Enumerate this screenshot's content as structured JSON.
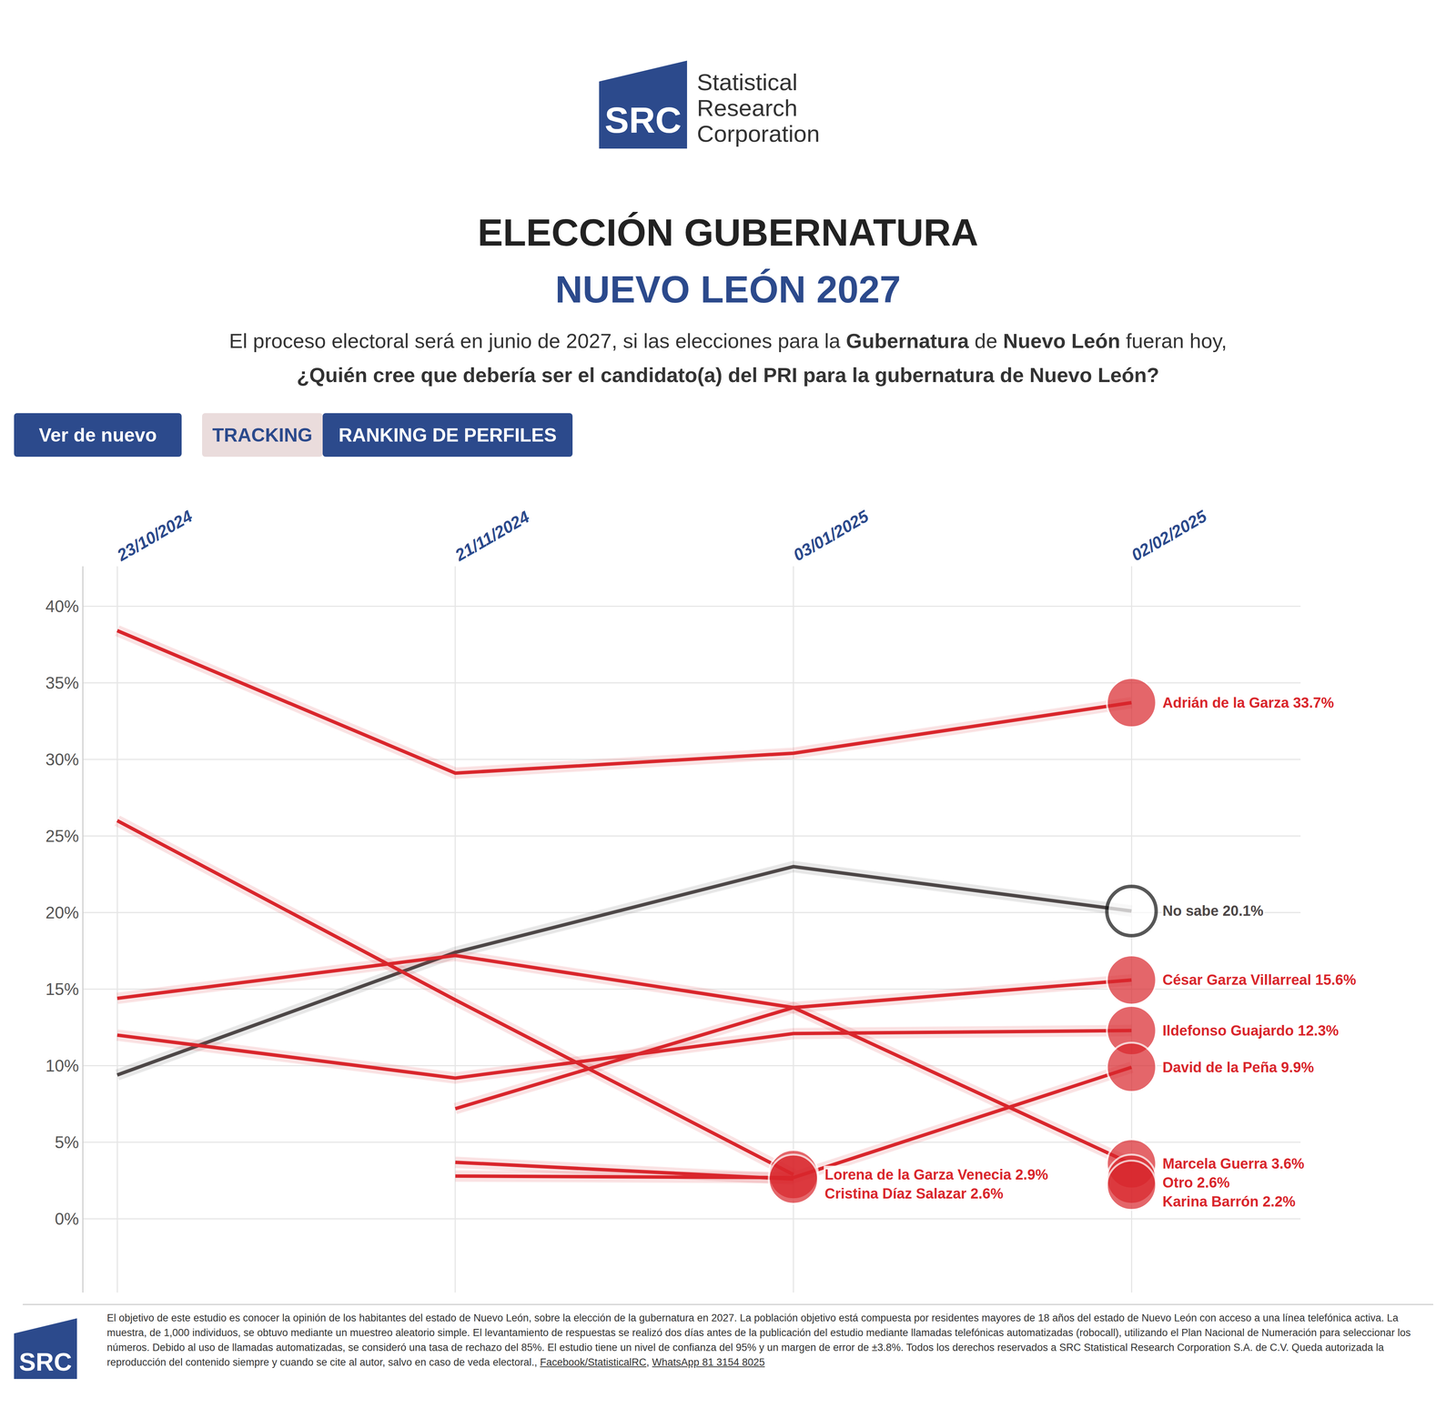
{
  "header": {
    "logo": {
      "mark": "SRC",
      "lines": [
        "Statistical",
        "Research",
        "Corporation"
      ]
    },
    "title": "ELECCIÓN GUBERNATURA",
    "subtitle": "NUEVO LEÓN 2027",
    "question": [
      [
        {
          "text": "El proceso electoral será en junio de 2027, si las elecciones para la ",
          "bold": false
        },
        {
          "text": "Gubernatura",
          "bold": true
        },
        {
          "text": " de ",
          "bold": false
        },
        {
          "text": "Nuevo León",
          "bold": true
        },
        {
          "text": " fueran hoy,",
          "bold": false
        }
      ],
      [
        {
          "text": "¿Quién cree que debería ser el candidato(a) del PRI para la gubernatura de Nuevo León?",
          "bold": true
        }
      ]
    ],
    "buttons": [
      "Ver de nuevo",
      "TRACKING",
      "RANKING DE PERFILES"
    ]
  },
  "chart_data": {
    "type": "line",
    "categories": [
      "23/10/2024",
      "21/11/2024",
      "03/01/2025",
      "02/02/2025"
    ],
    "ylim": [
      -4.8,
      42.6
    ],
    "yticks": [
      {
        "value": 0,
        "label": "0%"
      },
      {
        "value": 5,
        "label": "5%"
      },
      {
        "value": 10,
        "label": "10%"
      },
      {
        "value": 15,
        "label": "15%"
      },
      {
        "value": 20,
        "label": "20%"
      },
      {
        "value": 25,
        "label": "25%"
      },
      {
        "value": 30,
        "label": "30%"
      },
      {
        "value": 35,
        "label": "35%"
      },
      {
        "value": 40,
        "label": "40%"
      }
    ],
    "grid": true,
    "data_labels": true,
    "series": [
      {
        "name": "Adrián de la Garza",
        "color": "#d9262c",
        "marker": "circle",
        "values": [
          38.4,
          29.1,
          30.4,
          33.7
        ],
        "value_labels": [
          null,
          null,
          null,
          "33.7%"
        ]
      },
      {
        "name": "No sabe",
        "color": "#4d4747",
        "marker": "circle-open",
        "values": [
          9.4,
          17.4,
          23.0,
          20.1
        ],
        "value_labels": [
          null,
          null,
          null,
          "20.1%"
        ]
      },
      {
        "name": "César Garza Villarreal",
        "color": "#d9262c",
        "marker": "circle",
        "values": [
          null,
          7.2,
          13.8,
          15.6
        ],
        "value_labels": [
          null,
          null,
          null,
          "15.6%"
        ]
      },
      {
        "name": "Ildefonso Guajardo",
        "color": "#d9262c",
        "marker": "circle",
        "values": [
          12.0,
          9.2,
          12.1,
          12.3
        ],
        "value_labels": [
          null,
          null,
          null,
          "12.3%"
        ]
      },
      {
        "name": "David de la Peña",
        "color": "#d9262c",
        "marker": "circle",
        "values": [
          null,
          2.8,
          2.7,
          9.9
        ],
        "value_labels": [
          null,
          null,
          null,
          "9.9%"
        ]
      },
      {
        "name": "Marcela Guerra",
        "color": "#d9262c",
        "marker": "circle",
        "values": [
          14.4,
          17.2,
          13.8,
          3.6
        ],
        "value_labels": [
          null,
          null,
          null,
          "3.6%"
        ]
      },
      {
        "name": "Otro",
        "color": "#d9262c",
        "marker": "circle",
        "values": [
          null,
          null,
          null,
          2.6
        ],
        "value_labels": [
          null,
          null,
          null,
          "2.6%"
        ]
      },
      {
        "name": "Karina Barrón",
        "color": "#d9262c",
        "marker": "circle",
        "values": [
          null,
          null,
          null,
          2.2
        ],
        "value_labels": [
          null,
          null,
          null,
          "2.2%"
        ]
      },
      {
        "name": "Lorena de la Garza Venecia",
        "color": "#d9262c",
        "marker": "circle",
        "values": [
          26.0,
          14.3,
          2.9,
          null
        ],
        "value_labels": [
          null,
          null,
          "2.9%",
          null
        ]
      },
      {
        "name": "Cristina Díaz Salazar",
        "color": "#d9262c",
        "marker": "circle",
        "values": [
          null,
          3.7,
          2.6,
          null
        ],
        "value_labels": [
          null,
          null,
          "2.6%",
          null
        ]
      }
    ]
  },
  "footer": {
    "logo": "SRC",
    "text": [
      {
        "text": "El objetivo de este estudio es conocer la opinión de los habitantes del estado de Nuevo León, sobre la elección de la gubernatura en 2027. La población objetivo está compuesta por residentes mayores de 18 años del estado de Nuevo León con acceso a una línea telefónica activa. La muestra, de 1,000 individuos, se obtuvo mediante un muestreo aleatorio simple. El levantamiento de respuestas se realizó dos días antes de la publicación del estudio mediante llamadas telefónicas automatizadas (robocall), utilizando el Plan Nacional de Numeración para seleccionar los números. Debido al uso de llamadas automatizadas, se consideró una tasa de rechazo del 85%. El estudio tiene un nivel de confianza del 95% y un margen de error de ±3.8%. Todos los derechos reservados a SRC Statistical Research Corporation S.A. de C.V. Queda autorizada la reproducción del contenido siempre y cuando se cite al autor, salvo en caso de veda electoral., ",
        "link": false
      },
      {
        "text": "Facebook/StatisticalRC",
        "link": true
      },
      {
        "text": ", ",
        "link": false
      },
      {
        "text": "WhatsApp 81 3154 8025",
        "link": true
      }
    ]
  }
}
